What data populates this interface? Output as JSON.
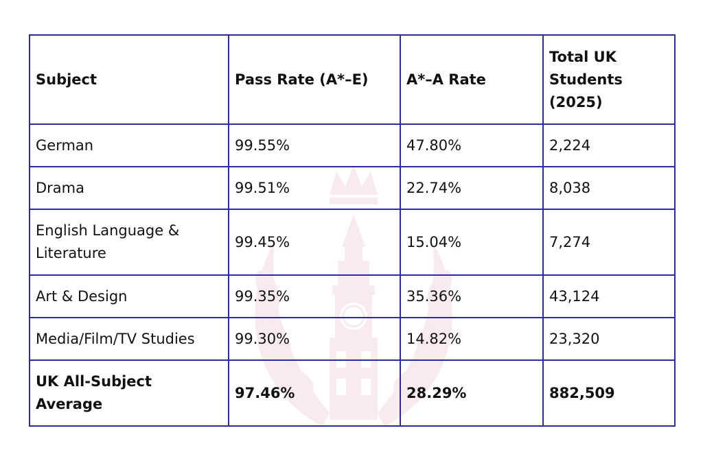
{
  "table": {
    "headers": [
      "Subject",
      "Pass Rate (A*–E)",
      "A*–A Rate",
      "Total UK Students (2025)"
    ],
    "rows": [
      [
        "German",
        "99.55%",
        "47.80%",
        "2,224"
      ],
      [
        "Drama",
        "99.51%",
        "22.74%",
        "8,038"
      ],
      [
        "English Language & Literature",
        "99.45%",
        "15.04%",
        "7,274"
      ],
      [
        "Art & Design",
        "99.35%",
        "35.36%",
        "43,124"
      ],
      [
        "Media/Film/TV Studies",
        "99.30%",
        "14.82%",
        "23,320"
      ]
    ],
    "footer": [
      "UK All-Subject Average",
      "97.46%",
      "28.29%",
      "882,509"
    ]
  },
  "colors": {
    "border": "#2a2aa0",
    "watermark": "#f3d9df"
  },
  "watermark": {
    "icon": "big-ben-laurel-crown-icon"
  }
}
